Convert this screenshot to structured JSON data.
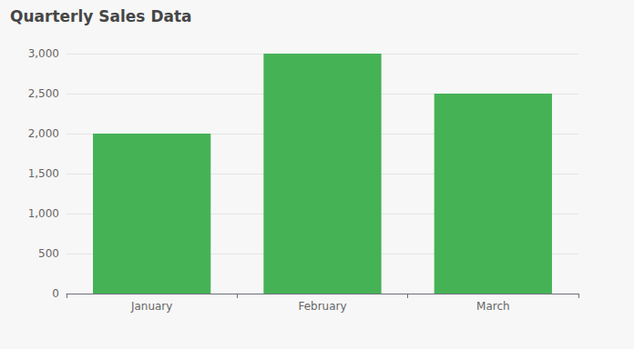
{
  "chart_data": {
    "type": "bar",
    "title": "Quarterly Sales Data",
    "categories": [
      "January",
      "February",
      "March"
    ],
    "values": [
      2000,
      3000,
      2500
    ],
    "color": "#45b255",
    "ylim": [
      0,
      3000
    ],
    "yticks": [
      0,
      500,
      {
        "value": 1000,
        "label": "1,000"
      },
      {
        "value": 1500,
        "label": "1,500"
      },
      {
        "value": 2000,
        "label": "2,000"
      },
      {
        "value": 2500,
        "label": "2,500"
      },
      {
        "value": 3000,
        "label": "3,000"
      }
    ],
    "grid": true
  }
}
